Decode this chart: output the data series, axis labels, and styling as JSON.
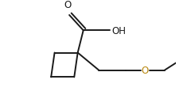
{
  "bg_color": "#ffffff",
  "bond_color": "#1a1a1a",
  "o_color": "#b8860b",
  "text_color": "#1a1a1a",
  "line_width": 1.4,
  "figsize": [
    2.35,
    1.16
  ],
  "dpi": 100,
  "oh_label": "OH",
  "o_label": "O",
  "fontsize": 8.5
}
